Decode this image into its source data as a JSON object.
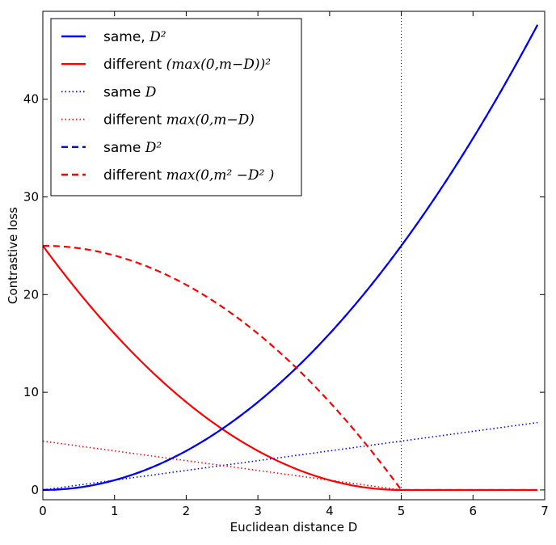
{
  "chart_data": {
    "type": "line",
    "xlabel": "Euclidean distance D",
    "ylabel": "Contrastive loss",
    "xlim": [
      0,
      7
    ],
    "ylim": [
      -1,
      49
    ],
    "xticks": [
      0,
      1,
      2,
      3,
      4,
      5,
      6,
      7
    ],
    "yticks": [
      0,
      10,
      20,
      30,
      40
    ],
    "xtick_labels": [
      "0",
      "1",
      "2",
      "3",
      "4",
      "5",
      "6",
      "7"
    ],
    "ytick_labels": [
      "0",
      "10",
      "20",
      "30",
      "40"
    ],
    "margin_m": 5,
    "x_max_plotted": 6.9,
    "grid": false,
    "legend_position": "top-left",
    "vline": {
      "x": 5,
      "style": "dotted",
      "color": "#000000"
    },
    "series": [
      {
        "name_text": "same,",
        "name_math": "D²",
        "formula": "D^2",
        "color": "#0000ff",
        "linestyle": "solid",
        "x": [
          0,
          1,
          2,
          3,
          4,
          5,
          6,
          6.9
        ],
        "values": [
          0,
          1,
          4,
          9,
          16,
          25,
          36,
          47.6
        ]
      },
      {
        "name_text": "different",
        "name_math": "(max(0,m−D))²",
        "formula": "max(0,m-D)^2",
        "color": "#ff0000",
        "linestyle": "solid",
        "x": [
          0,
          1,
          2,
          3,
          4,
          5,
          6,
          6.9
        ],
        "values": [
          25,
          16,
          9,
          4,
          1,
          0,
          0,
          0
        ]
      },
      {
        "name_text": "same",
        "name_math": "D",
        "formula": "D",
        "color": "#0000ff",
        "linestyle": "dotted",
        "x": [
          0,
          1,
          2,
          3,
          4,
          5,
          6,
          6.9
        ],
        "values": [
          0,
          1,
          2,
          3,
          4,
          5,
          6,
          6.9
        ]
      },
      {
        "name_text": "different",
        "name_math": "max(0,m−D)",
        "formula": "max(0,m-D)",
        "color": "#ff0000",
        "linestyle": "dotted",
        "x": [
          0,
          1,
          2,
          3,
          4,
          5,
          6,
          6.9
        ],
        "values": [
          5,
          4,
          3,
          2,
          1,
          0,
          0,
          0
        ]
      },
      {
        "name_text": "same",
        "name_math": "D²",
        "formula": "D^2",
        "color": "#0000ff",
        "linestyle": "dashed",
        "x": [
          0,
          1,
          2,
          3,
          4,
          5,
          6,
          6.9
        ],
        "values": [
          0,
          1,
          4,
          9,
          16,
          25,
          36,
          47.6
        ]
      },
      {
        "name_text": "different",
        "name_math": "max(0,m² −D² )",
        "formula": "max(0,m^2-D^2)",
        "color": "#ff0000",
        "linestyle": "dashed",
        "x": [
          0,
          1,
          2,
          3,
          4,
          5,
          6,
          6.9
        ],
        "values": [
          25,
          24,
          21,
          16,
          9,
          0,
          0,
          0
        ]
      }
    ]
  }
}
